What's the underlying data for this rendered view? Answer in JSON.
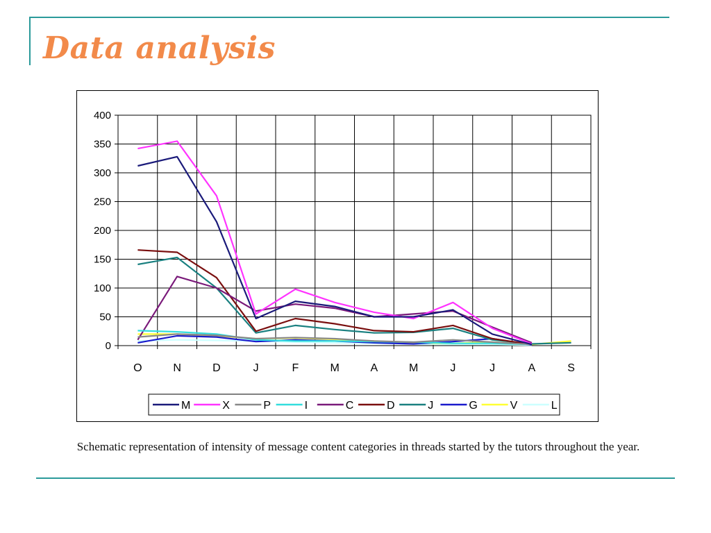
{
  "slide": {
    "title": "Data analysis",
    "caption": "Schematic representation of intensity of message content categories in threads started by the tutors throughout the year."
  },
  "chart_data": {
    "type": "line",
    "title": "",
    "xlabel": "",
    "ylabel": "",
    "categories": [
      "O",
      "N",
      "D",
      "J",
      "F",
      "M",
      "A",
      "M",
      "J",
      "J",
      "A",
      "S"
    ],
    "ylim": [
      0,
      400
    ],
    "yticks": [
      0,
      50,
      100,
      150,
      200,
      250,
      300,
      350,
      400
    ],
    "grid": true,
    "legend_position": "bottom",
    "series": [
      {
        "name": "M",
        "color": "#1a1a7a",
        "values": [
          312,
          328,
          215,
          47,
          77,
          68,
          50,
          50,
          62,
          20,
          2,
          null
        ]
      },
      {
        "name": "X",
        "color": "#ff33ff",
        "values": [
          342,
          355,
          260,
          55,
          98,
          75,
          58,
          47,
          75,
          30,
          3,
          null
        ]
      },
      {
        "name": "P",
        "color": "#888888",
        "values": [
          15,
          20,
          18,
          12,
          14,
          12,
          8,
          6,
          10,
          6,
          2,
          null
        ]
      },
      {
        "name": "I",
        "color": "#33dddd",
        "values": [
          26,
          24,
          20,
          10,
          8,
          8,
          7,
          6,
          4,
          4,
          2,
          null
        ]
      },
      {
        "name": "C",
        "color": "#7a1a7a",
        "values": [
          10,
          120,
          100,
          60,
          72,
          65,
          50,
          55,
          60,
          32,
          5,
          null
        ]
      },
      {
        "name": "D",
        "color": "#7a0f0f",
        "values": [
          166,
          162,
          118,
          25,
          47,
          38,
          26,
          24,
          35,
          12,
          2,
          null
        ]
      },
      {
        "name": "J",
        "color": "#1a8080",
        "values": [
          141,
          153,
          100,
          22,
          35,
          28,
          22,
          23,
          30,
          10,
          3,
          5
        ]
      },
      {
        "name": "G",
        "color": "#1a1acc",
        "values": [
          5,
          17,
          15,
          7,
          10,
          8,
          5,
          3,
          7,
          12,
          1,
          null
        ]
      },
      {
        "name": "V",
        "color": "#ffff33",
        "values": [
          20,
          20,
          17,
          12,
          13,
          11,
          8,
          5,
          4,
          6,
          2,
          8
        ]
      },
      {
        "name": "L",
        "color": "#ccffff",
        "values": [
          8,
          10,
          9,
          8,
          6,
          5,
          4,
          3,
          2,
          2,
          1,
          null
        ]
      }
    ]
  }
}
